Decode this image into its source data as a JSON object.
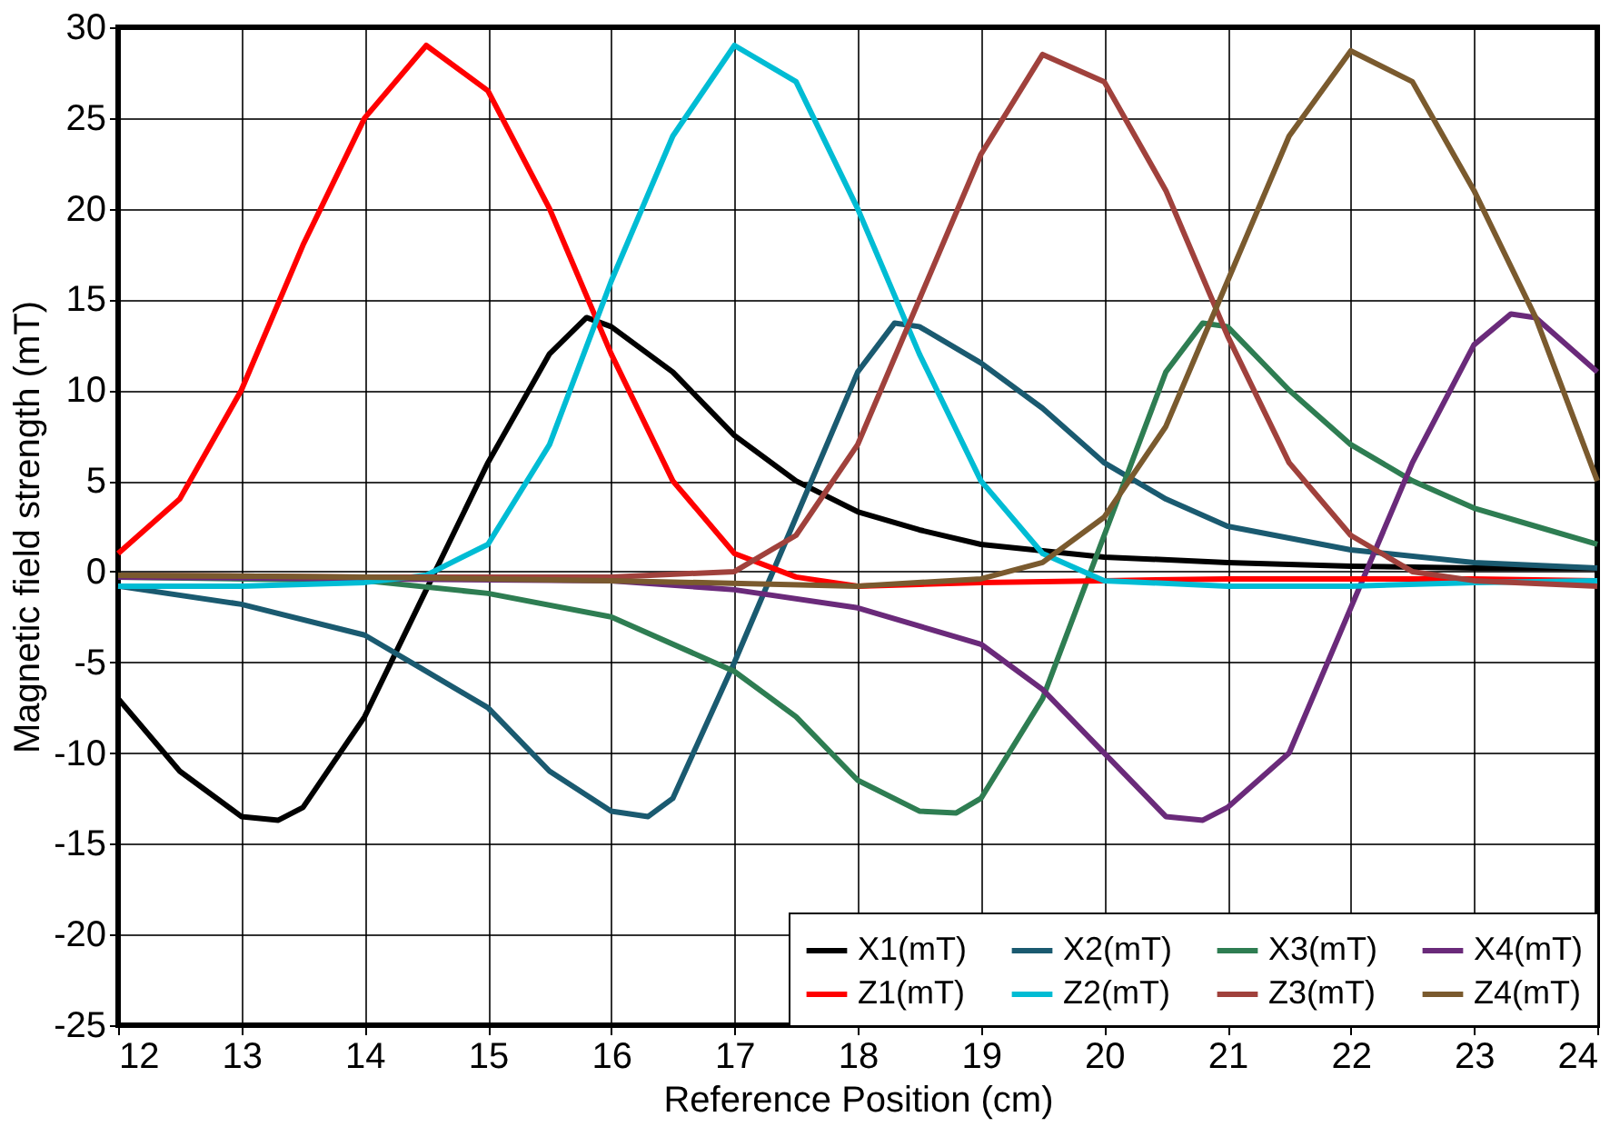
{
  "chart_data": {
    "type": "line",
    "xlabel": "Reference Position (cm)",
    "ylabel": "Magnetic field strength (mT)",
    "xlim": [
      12,
      24
    ],
    "ylim": [
      -25,
      30
    ],
    "xticks": [
      12,
      13,
      14,
      15,
      16,
      17,
      18,
      19,
      20,
      21,
      22,
      23,
      24
    ],
    "yticks": [
      -25,
      -20,
      -15,
      -10,
      -5,
      0,
      5,
      10,
      15,
      20,
      25,
      30
    ],
    "grid": true,
    "legend": "bottom right",
    "line_style": "solid",
    "marker": "none",
    "series": [
      {
        "name": "X1(mT)",
        "color": "#000000",
        "x": [
          12,
          12.5,
          13,
          13.3,
          13.5,
          14,
          14.5,
          15,
          15.5,
          15.8,
          16,
          16.5,
          17,
          17.5,
          18,
          18.5,
          19,
          20,
          21,
          22,
          23,
          24
        ],
        "values": [
          -7,
          -11,
          -13.5,
          -13.7,
          -13,
          -8,
          -1,
          6,
          12,
          14,
          13.5,
          11,
          7.5,
          5,
          3.3,
          2.3,
          1.5,
          0.8,
          0.5,
          0.3,
          0.2,
          0.2
        ]
      },
      {
        "name": "X2(mT)",
        "color": "#1a5a70",
        "x": [
          12,
          13,
          14,
          14.5,
          15,
          15.5,
          16,
          16.3,
          16.5,
          17,
          17.5,
          18,
          18.3,
          18.5,
          19,
          19.5,
          20,
          20.5,
          21,
          22,
          23,
          24
        ],
        "values": [
          -0.8,
          -1.8,
          -3.5,
          -5.5,
          -7.5,
          -11,
          -13.2,
          -13.5,
          -12.5,
          -5,
          3,
          11,
          13.7,
          13.5,
          11.5,
          9,
          6,
          4,
          2.5,
          1.2,
          0.5,
          0.2
        ]
      },
      {
        "name": "X3(mT)",
        "color": "#2e7d52",
        "x": [
          12,
          14,
          15,
          16,
          17,
          17.5,
          18,
          18.5,
          18.8,
          19,
          19.5,
          20,
          20.5,
          20.8,
          21,
          21.5,
          22,
          22.5,
          23,
          23.5,
          24
        ],
        "values": [
          -0.3,
          -0.5,
          -1.2,
          -2.5,
          -5.5,
          -8,
          -11.5,
          -13.2,
          -13.3,
          -12.5,
          -7,
          2,
          11,
          13.7,
          13.5,
          10,
          7,
          5,
          3.5,
          2.5,
          1.5
        ]
      },
      {
        "name": "X4(mT)",
        "color": "#6a2a7a",
        "x": [
          12,
          16,
          17,
          18,
          19,
          19.5,
          20,
          20.5,
          20.8,
          21,
          21.5,
          22,
          22.5,
          23,
          23.3,
          23.5,
          24
        ],
        "values": [
          -0.3,
          -0.5,
          -1,
          -2,
          -4,
          -6.5,
          -10,
          -13.5,
          -13.7,
          -13,
          -10,
          -2,
          6,
          12.5,
          14.2,
          14,
          11
        ]
      },
      {
        "name": "Z1(mT)",
        "color": "#ff0000",
        "x": [
          12,
          12.5,
          13,
          13.5,
          14,
          14.5,
          15,
          15.5,
          16,
          16.5,
          17,
          17.5,
          18,
          18.5,
          19,
          20,
          21,
          22,
          23,
          24
        ],
        "values": [
          1,
          4,
          10,
          18,
          25,
          29,
          26.5,
          20,
          12,
          5,
          1,
          -0.3,
          -0.8,
          -0.7,
          -0.6,
          -0.5,
          -0.4,
          -0.4,
          -0.4,
          -0.5
        ]
      },
      {
        "name": "Z2(mT)",
        "color": "#00bcd4",
        "x": [
          12,
          13,
          14,
          14.5,
          15,
          15.5,
          16,
          16.5,
          17,
          17.5,
          18,
          18.5,
          19,
          19.5,
          20,
          21,
          22,
          23,
          24
        ],
        "values": [
          -0.8,
          -0.8,
          -0.6,
          -0.2,
          1.5,
          7,
          16,
          24,
          29,
          27,
          20,
          12,
          5,
          1,
          -0.5,
          -0.8,
          -0.8,
          -0.6,
          -0.5
        ]
      },
      {
        "name": "Z3(mT)",
        "color": "#a0413c",
        "x": [
          12,
          14,
          16,
          17,
          17.5,
          18,
          18.5,
          19,
          19.5,
          20,
          20.5,
          21,
          21.5,
          22,
          22.5,
          23,
          24
        ],
        "values": [
          -0.2,
          -0.3,
          -0.3,
          0,
          2,
          7,
          15,
          23,
          28.5,
          27,
          21,
          13,
          6,
          2,
          0,
          -0.5,
          -0.8
        ]
      },
      {
        "name": "Z4(mT)",
        "color": "#7a5a2e",
        "x": [
          12,
          14,
          16,
          18,
          19,
          19.5,
          20,
          20.5,
          21,
          21.5,
          22,
          22.5,
          23,
          23.5,
          24
        ],
        "values": [
          -0.2,
          -0.3,
          -0.5,
          -0.8,
          -0.4,
          0.5,
          3,
          8,
          16,
          24,
          28.7,
          27,
          21,
          14,
          5
        ]
      }
    ]
  }
}
